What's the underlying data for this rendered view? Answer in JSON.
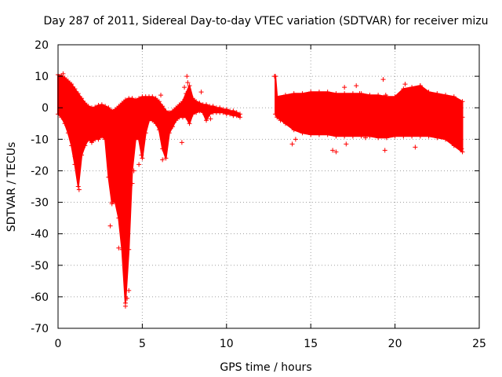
{
  "chart_data": {
    "type": "scatter",
    "title": "Day 287 of 2011, Sidereal Day-to-day VTEC variation (SDTVAR) for receiver mizu",
    "xlabel": "GPS time / hours",
    "ylabel": "SDTVAR / TECUs",
    "xlim": [
      0,
      25
    ],
    "ylim": [
      -70,
      20
    ],
    "x_ticks": [
      0,
      5,
      10,
      15,
      20,
      25
    ],
    "y_ticks": [
      20,
      10,
      0,
      -10,
      -20,
      -30,
      -40,
      -50,
      -60,
      -70
    ],
    "grid": true,
    "marker": "+",
    "series": [
      {
        "name": "SDTVAR",
        "color": "#ff0000",
        "envelope": {
          "x": [
            0.0,
            0.2,
            0.4,
            0.6,
            0.8,
            1.0,
            1.2,
            1.4,
            1.6,
            1.8,
            2.0,
            2.2,
            2.4,
            2.6,
            2.8,
            3.0,
            3.2,
            3.4,
            3.6,
            3.8,
            4.0,
            4.2,
            4.4,
            4.6,
            4.8,
            5.0,
            5.2,
            5.4,
            5.6,
            5.8,
            6.0,
            6.2,
            6.4,
            6.6,
            6.8,
            7.0,
            7.2,
            7.4,
            7.6,
            7.8,
            8.0,
            8.2,
            8.4,
            8.6,
            8.8,
            9.0,
            9.2,
            9.4,
            9.6,
            9.8,
            10.0,
            10.2,
            10.4,
            10.6,
            10.8
          ],
          "high": [
            10.5,
            10.2,
            9.5,
            8.5,
            7.5,
            6.0,
            4.5,
            3.0,
            1.5,
            0.5,
            0.0,
            0.2,
            0.8,
            1.0,
            0.5,
            0.0,
            -1.0,
            -0.5,
            0.5,
            1.5,
            2.5,
            3.0,
            3.0,
            2.5,
            3.0,
            3.5,
            3.5,
            3.5,
            3.5,
            3.0,
            2.0,
            0.5,
            -1.0,
            -1.5,
            -1.0,
            0.0,
            1.0,
            2.0,
            4.5,
            7.0,
            3.0,
            2.0,
            1.5,
            1.0,
            1.0,
            0.5,
            0.5,
            0.0,
            0.0,
            -0.5,
            -0.5,
            -1.0,
            -1.0,
            -1.5,
            -2.0
          ],
          "low": [
            -2.0,
            -3.0,
            -5.0,
            -8.0,
            -12.0,
            -18.0,
            -25.0,
            -15.0,
            -12.0,
            -10.0,
            -11.0,
            -10.0,
            -10.0,
            -9.0,
            -10.0,
            -22.0,
            -30.0,
            -30.0,
            -35.0,
            -45.0,
            -62.0,
            -45.0,
            -20.0,
            -10.0,
            -10.0,
            -16.0,
            -8.0,
            -4.0,
            -4.0,
            -5.0,
            -7.0,
            -13.0,
            -16.0,
            -8.0,
            -6.0,
            -4.0,
            -3.0,
            -3.0,
            -3.0,
            -5.0,
            -2.0,
            -1.5,
            -1.0,
            -1.5,
            -4.0,
            -2.0,
            -1.5,
            -1.5,
            -1.5,
            -1.5,
            -2.0,
            -2.0,
            -2.5,
            -2.5,
            -3.0
          ]
        },
        "envelope2": {
          "x": [
            12.9,
            13.0,
            13.5,
            14.0,
            14.5,
            15.0,
            15.5,
            16.0,
            16.5,
            17.0,
            17.5,
            18.0,
            18.5,
            19.0,
            19.5,
            20.0,
            20.5,
            21.0,
            21.5,
            22.0,
            22.5,
            23.0,
            23.5,
            24.0
          ],
          "high": [
            10.0,
            3.5,
            4.0,
            4.5,
            4.5,
            5.0,
            5.0,
            5.0,
            4.5,
            4.5,
            4.5,
            4.5,
            4.0,
            4.0,
            3.5,
            3.5,
            6.0,
            6.5,
            7.0,
            5.0,
            4.5,
            4.0,
            3.5,
            2.0
          ],
          "low": [
            -2.0,
            -3.0,
            -5.0,
            -7.0,
            -8.0,
            -8.5,
            -8.5,
            -8.5,
            -9.0,
            -9.0,
            -9.0,
            -9.0,
            -9.0,
            -9.5,
            -9.5,
            -9.0,
            -9.0,
            -9.0,
            -9.0,
            -9.0,
            -9.5,
            -10.0,
            -12.0,
            -14.0
          ]
        },
        "outliers": [
          [
            0.3,
            10.8
          ],
          [
            1.0,
            -15.5
          ],
          [
            1.25,
            -26.0
          ],
          [
            3.1,
            -37.5
          ],
          [
            3.2,
            -30.5
          ],
          [
            3.6,
            -44.5
          ],
          [
            3.8,
            -38.0
          ],
          [
            4.0,
            -63.0
          ],
          [
            4.1,
            -60.5
          ],
          [
            4.2,
            -58.0
          ],
          [
            4.4,
            -24.0
          ],
          [
            4.5,
            -20.0
          ],
          [
            4.8,
            -18.0
          ],
          [
            4.95,
            -15.0
          ],
          [
            6.1,
            4.0
          ],
          [
            6.2,
            -16.5
          ],
          [
            7.5,
            6.5
          ],
          [
            7.65,
            10.0
          ],
          [
            7.7,
            8.0
          ],
          [
            7.35,
            -11.0
          ],
          [
            8.5,
            5.0
          ],
          [
            9.05,
            -3.5
          ],
          [
            10.7,
            -2.5
          ],
          [
            12.85,
            10.0
          ],
          [
            13.2,
            -4.0
          ],
          [
            13.9,
            -11.5
          ],
          [
            14.1,
            -10.0
          ],
          [
            15.0,
            2.0
          ],
          [
            16.3,
            -13.5
          ],
          [
            16.5,
            -14.0
          ],
          [
            17.7,
            7.0
          ],
          [
            17.9,
            4.5
          ],
          [
            17.0,
            6.5
          ],
          [
            17.1,
            -11.5
          ],
          [
            18.25,
            -9.5
          ],
          [
            18.5,
            3.5
          ],
          [
            19.3,
            9.0
          ],
          [
            19.4,
            -13.5
          ],
          [
            19.45,
            4.0
          ],
          [
            19.2,
            2.5
          ],
          [
            20.6,
            7.5
          ],
          [
            21.2,
            -12.5
          ],
          [
            21.5,
            7.0
          ],
          [
            23.95,
            -13.0
          ],
          [
            24.0,
            -3.0
          ]
        ]
      }
    ]
  }
}
